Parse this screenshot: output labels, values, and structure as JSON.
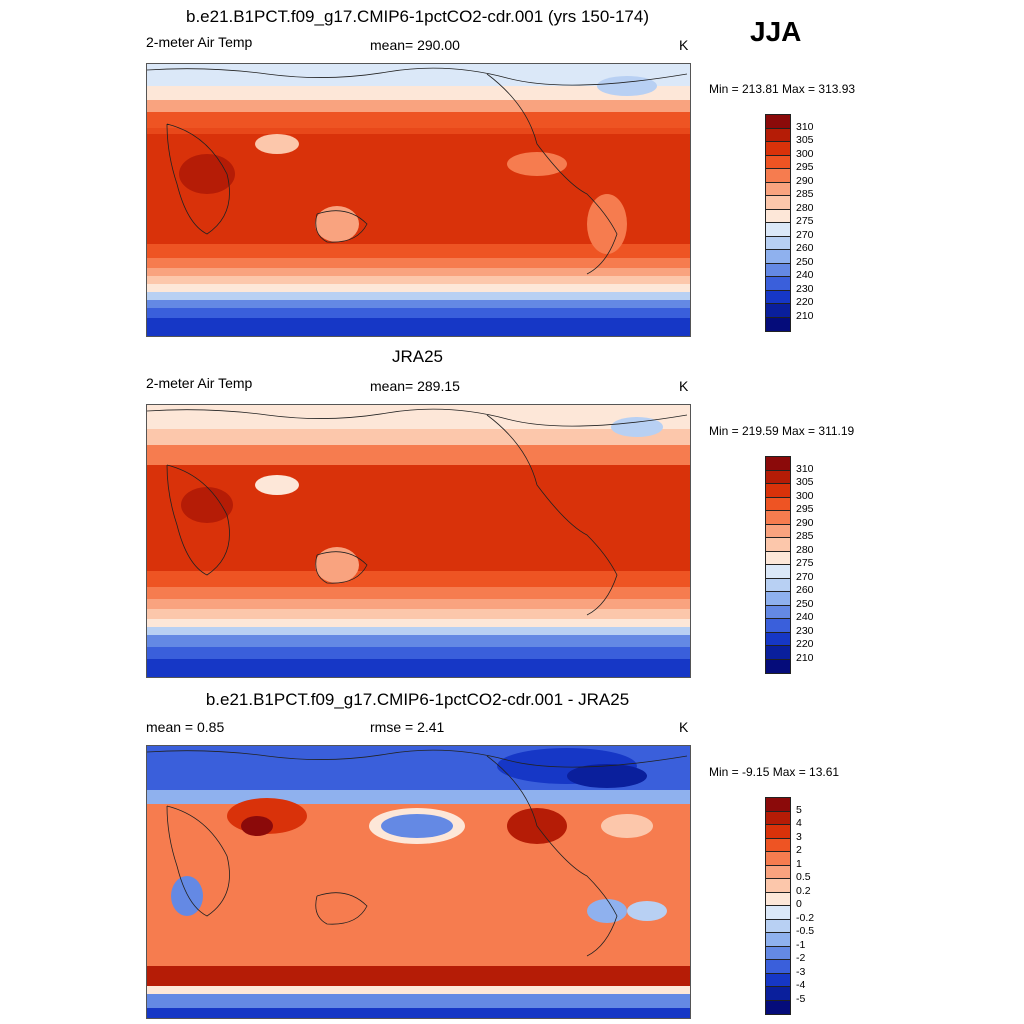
{
  "season": "JJA",
  "panels": [
    {
      "title": "b.e21.B1PCT.f09_g17.CMIP6-1pctCO2-cdr.001 (yrs 150-174)",
      "left_label": "2-meter Air Temp",
      "center_label": "mean= 290.00",
      "units": "K",
      "minmax": "Min = 213.81 Max = 313.93"
    },
    {
      "title": "JRA25",
      "left_label": "2-meter Air Temp",
      "center_label": "mean= 289.15",
      "units": "K",
      "minmax": "Min = 219.59 Max = 311.19"
    },
    {
      "title": "b.e21.B1PCT.f09_g17.CMIP6-1pctCO2-cdr.001 - JRA25",
      "left_label": "mean =   0.85",
      "center_label": "rmse =   2.41",
      "units": "K",
      "minmax": "Min =  -9.15 Max =  13.61"
    }
  ],
  "chart_data": [
    {
      "type": "heatmap",
      "title": "b.e21.B1PCT.f09_g17.CMIP6-1pctCO2-cdr.001 (yrs 150-174)",
      "variable": "2-meter Air Temp",
      "units": "K",
      "mean": 290.0,
      "min": 213.81,
      "max": 313.93,
      "colorbar_levels": [
        310,
        305,
        300,
        295,
        290,
        285,
        280,
        275,
        270,
        260,
        250,
        240,
        230,
        220,
        210
      ],
      "colorbar_colors": [
        "#8b0a0a",
        "#b51c06",
        "#d9320a",
        "#ee5423",
        "#f67c4f",
        "#f9a37f",
        "#fcc7ab",
        "#fde7d8",
        "#dbe8f8",
        "#b8d0f3",
        "#8fb1ee",
        "#6489e4",
        "#3a5fdb",
        "#1637c6",
        "#0a1f9c",
        "#050c7a"
      ]
    },
    {
      "type": "heatmap",
      "title": "JRA25",
      "variable": "2-meter Air Temp",
      "units": "K",
      "mean": 289.15,
      "min": 219.59,
      "max": 311.19,
      "colorbar_levels": [
        310,
        305,
        300,
        295,
        290,
        285,
        280,
        275,
        270,
        260,
        250,
        240,
        230,
        220,
        210
      ],
      "colorbar_colors": [
        "#8b0a0a",
        "#b51c06",
        "#d9320a",
        "#ee5423",
        "#f67c4f",
        "#f9a37f",
        "#fcc7ab",
        "#fde7d8",
        "#dbe8f8",
        "#b8d0f3",
        "#8fb1ee",
        "#6489e4",
        "#3a5fdb",
        "#1637c6",
        "#0a1f9c",
        "#050c7a"
      ]
    },
    {
      "type": "heatmap",
      "title": "b.e21.B1PCT.f09_g17.CMIP6-1pctCO2-cdr.001 - JRA25",
      "units": "K",
      "mean": 0.85,
      "rmse": 2.41,
      "min": -9.15,
      "max": 13.61,
      "colorbar_levels": [
        "5",
        "4",
        "3",
        "2",
        "1",
        "0.5",
        "0.2",
        "0",
        "-0.2",
        "-0.5",
        "-1",
        "-2",
        "-3",
        "-4",
        "-5"
      ],
      "colorbar_colors": [
        "#8b0a0a",
        "#b51c06",
        "#d9320a",
        "#ee5423",
        "#f67c4f",
        "#f9a37f",
        "#fcc7ab",
        "#fde7d8",
        "#dbe8f8",
        "#b8d0f3",
        "#8fb1ee",
        "#6489e4",
        "#3a5fdb",
        "#1637c6",
        "#0a1f9c",
        "#050c7a"
      ]
    }
  ]
}
